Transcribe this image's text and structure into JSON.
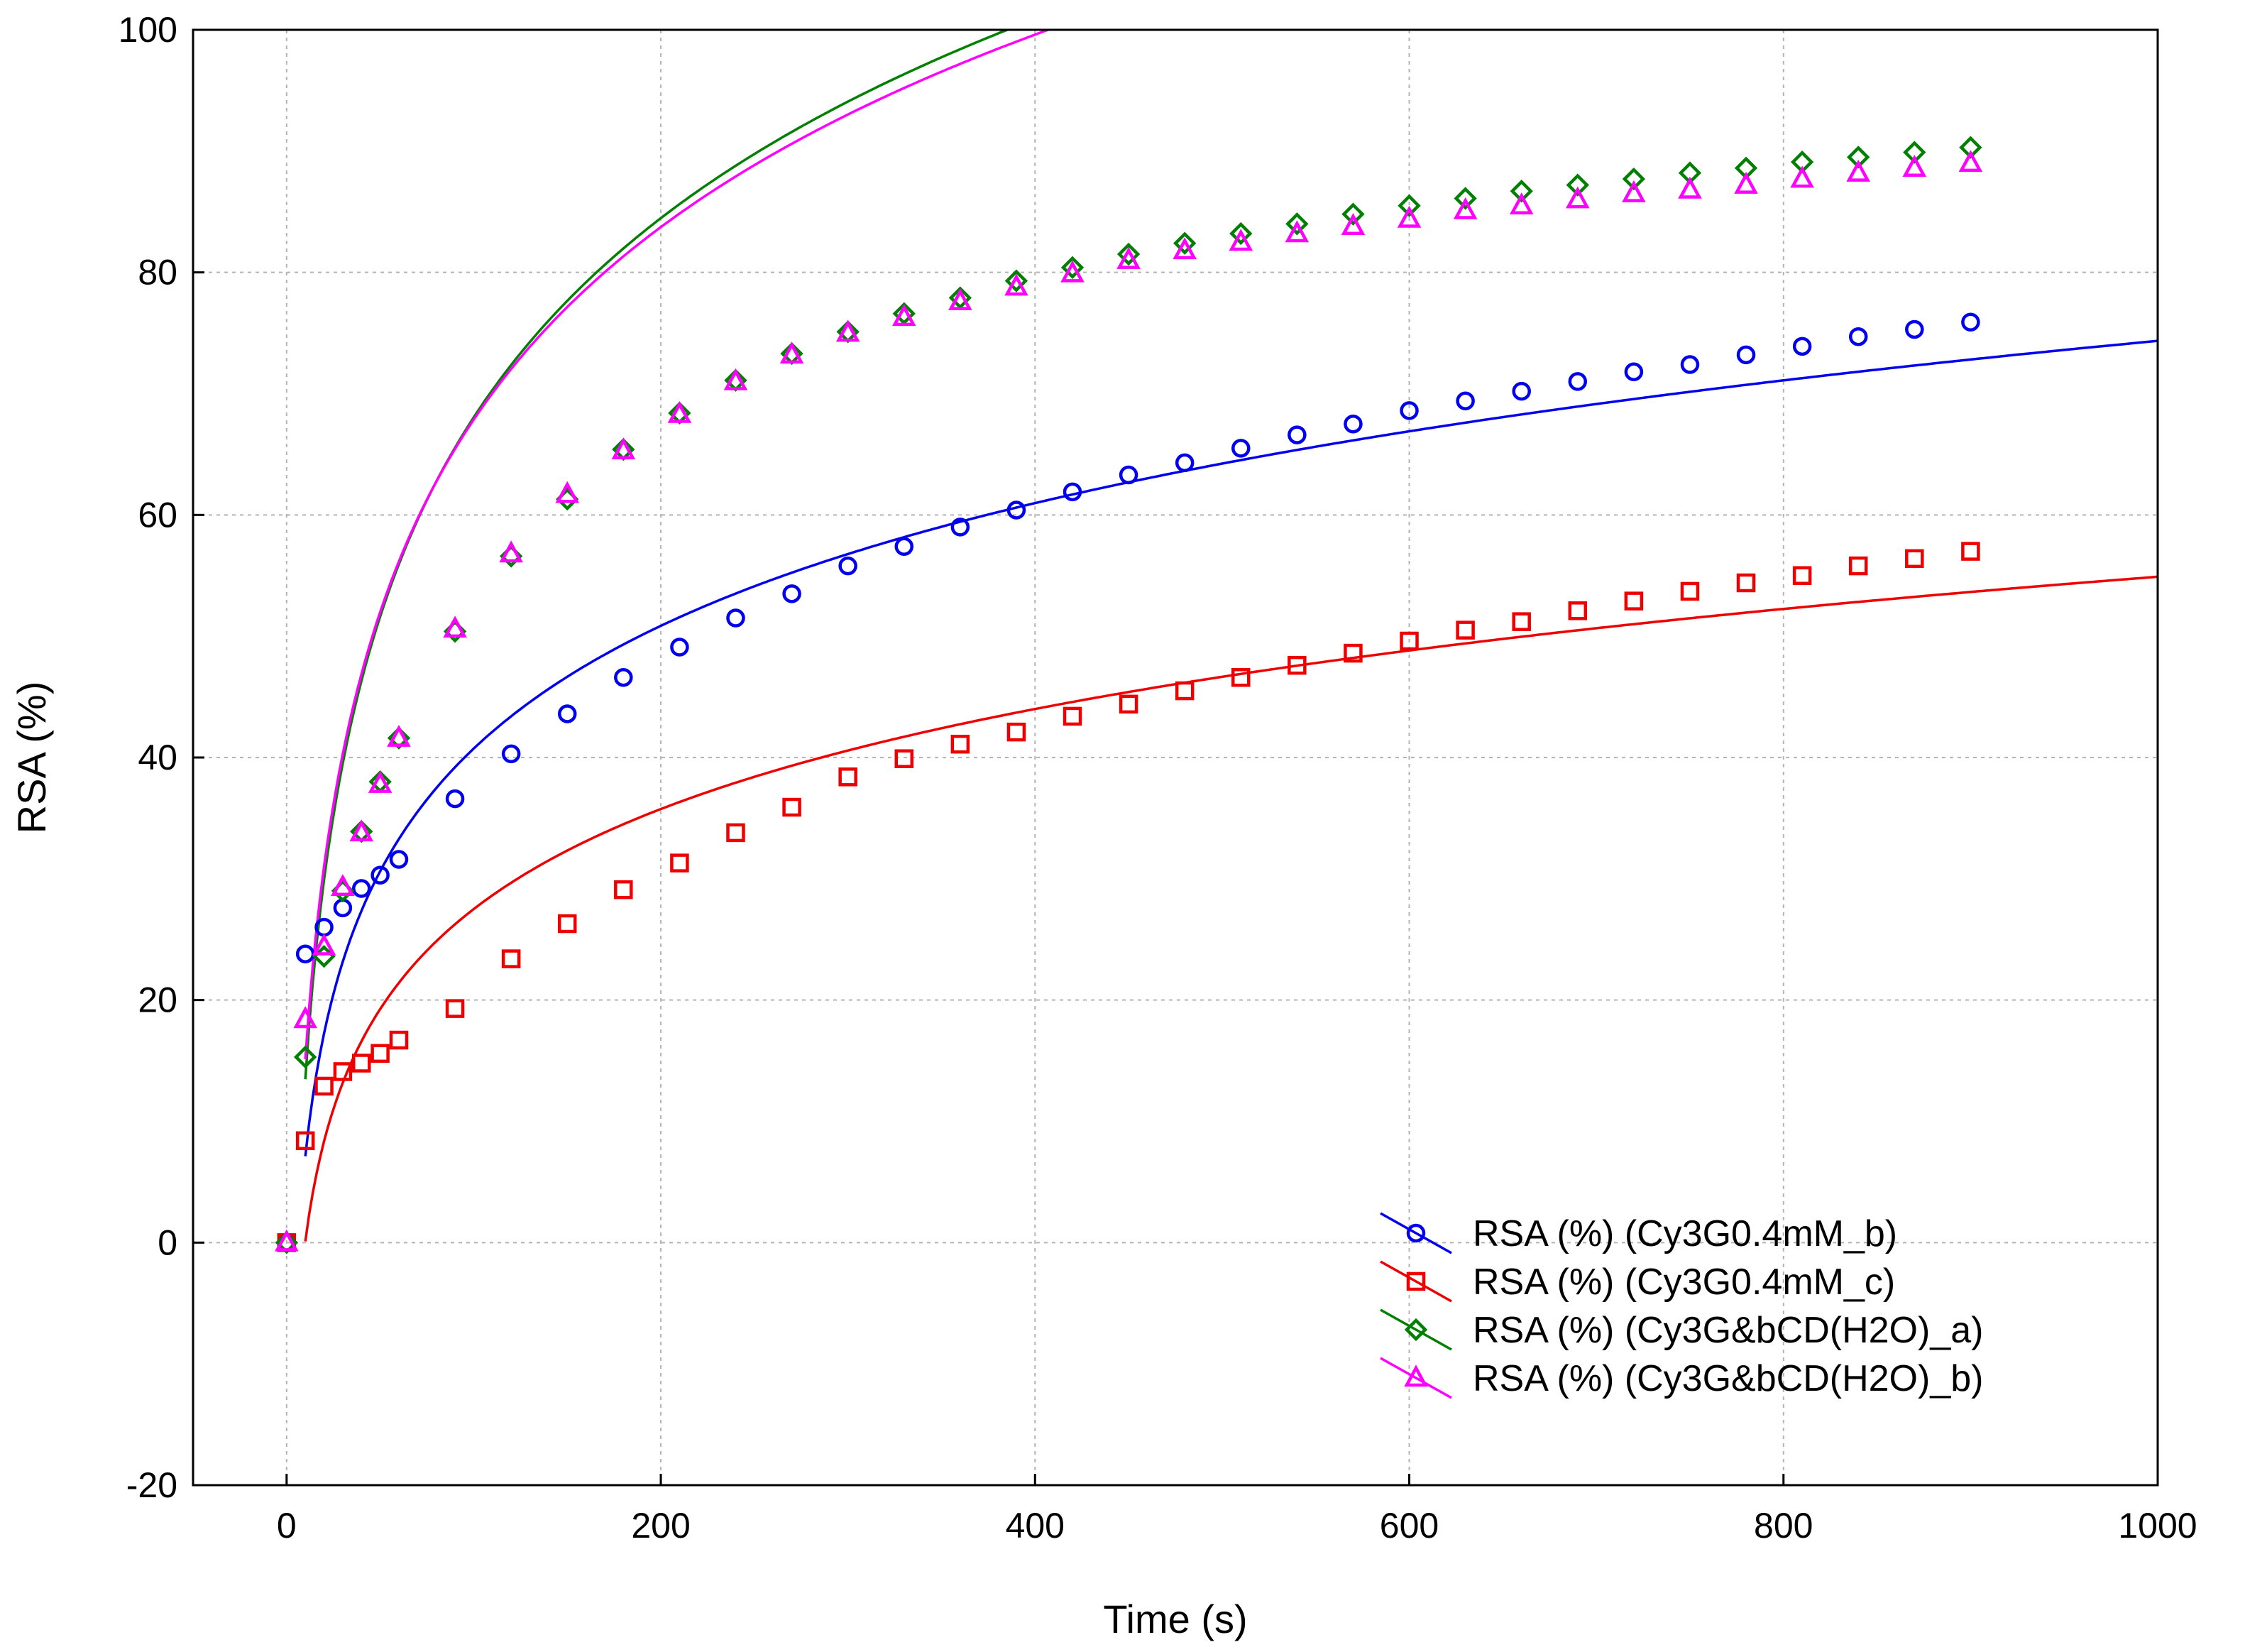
{
  "chart_data": {
    "type": "scatter",
    "xlabel": "Time (s)",
    "ylabel": "RSA (%)",
    "xlim": [
      -50,
      1000
    ],
    "ylim": [
      -20,
      100
    ],
    "xticks": [
      0,
      200,
      400,
      600,
      800,
      1000
    ],
    "yticks": [
      -20,
      0,
      20,
      40,
      60,
      80,
      100
    ],
    "xtick_labels": [
      "0",
      "200",
      "400",
      "600",
      "800",
      "1000"
    ],
    "ytick_labels": [
      "-20",
      "0",
      "20",
      "40",
      "60",
      "80",
      "100"
    ],
    "grid": true,
    "legend_position": "bottom-right",
    "series": [
      {
        "name": "RSA (%) (Cy3G0.4mM_b)",
        "color": "#0000ee",
        "marker": "circle",
        "x": [
          0,
          10,
          20,
          30,
          40,
          50,
          60,
          90,
          120,
          150,
          180,
          210,
          240,
          270,
          300,
          330,
          360,
          390,
          420,
          450,
          480,
          510,
          540,
          570,
          600,
          630,
          660,
          690,
          720,
          750,
          780,
          810,
          840,
          870,
          900
        ],
        "y": [
          0,
          23.8,
          26.0,
          27.6,
          29.2,
          30.3,
          31.6,
          36.6,
          40.3,
          43.6,
          46.6,
          49.1,
          51.5,
          53.5,
          55.8,
          57.4,
          59.0,
          60.4,
          61.9,
          63.3,
          64.3,
          65.5,
          66.6,
          67.5,
          68.6,
          69.4,
          70.2,
          71.0,
          71.8,
          72.4,
          73.2,
          73.9,
          74.7,
          75.3,
          75.9
        ],
        "fit": {
          "a": -26.5,
          "b": 14.6
        }
      },
      {
        "name": "RSA (%) (Cy3G0.4mM_c)",
        "color": "#ee0000",
        "marker": "square",
        "x": [
          0,
          10,
          20,
          30,
          40,
          50,
          60,
          90,
          120,
          150,
          180,
          210,
          240,
          270,
          300,
          330,
          360,
          390,
          420,
          450,
          480,
          510,
          540,
          570,
          600,
          630,
          660,
          690,
          720,
          750,
          780,
          810,
          840,
          870,
          900
        ],
        "y": [
          0,
          8.4,
          12.9,
          14.1,
          14.8,
          15.6,
          16.7,
          19.3,
          23.4,
          26.3,
          29.1,
          31.3,
          33.8,
          35.9,
          38.4,
          39.9,
          41.1,
          42.1,
          43.4,
          44.4,
          45.5,
          46.6,
          47.6,
          48.6,
          49.6,
          50.5,
          51.2,
          52.1,
          52.9,
          53.7,
          54.4,
          55.0,
          55.8,
          56.4,
          57.0
        ],
        "fit": {
          "a": -27.3,
          "b": 11.9
        }
      },
      {
        "name": "RSA (%) (Cy3G&bCD(H2O)_a)",
        "color": "#008000",
        "marker": "diamond",
        "x": [
          0,
          10,
          20,
          30,
          40,
          50,
          60,
          90,
          120,
          150,
          180,
          210,
          240,
          270,
          300,
          330,
          360,
          390,
          420,
          450,
          480,
          510,
          540,
          570,
          600,
          630,
          660,
          690,
          720,
          750,
          780,
          810,
          840,
          870,
          900
        ],
        "y": [
          0,
          15.3,
          23.6,
          29.0,
          33.9,
          38.0,
          41.6,
          50.4,
          56.6,
          61.3,
          65.4,
          68.4,
          71.1,
          73.3,
          75.1,
          76.6,
          77.9,
          79.3,
          80.4,
          81.5,
          82.4,
          83.2,
          84.0,
          84.8,
          85.5,
          86.1,
          86.7,
          87.2,
          87.7,
          88.2,
          88.6,
          89.1,
          89.5,
          89.9,
          90.3
        ],
        "fit": {
          "a": -41.1,
          "b": 23.7
        }
      },
      {
        "name": "RSA (%) (Cy3G&bCD(H2O)_b)",
        "color": "#ff00ff",
        "marker": "triangle",
        "x": [
          0,
          10,
          20,
          30,
          40,
          50,
          60,
          90,
          120,
          150,
          180,
          210,
          240,
          270,
          300,
          330,
          360,
          390,
          420,
          450,
          480,
          510,
          540,
          570,
          600,
          630,
          660,
          690,
          720,
          750,
          780,
          810,
          840,
          870,
          900
        ],
        "y": [
          0,
          18.4,
          24.4,
          29.3,
          33.8,
          37.8,
          41.6,
          50.6,
          56.8,
          61.7,
          65.3,
          68.3,
          71.0,
          73.2,
          75.0,
          76.3,
          77.6,
          78.8,
          79.9,
          81.0,
          81.8,
          82.5,
          83.2,
          83.8,
          84.4,
          85.1,
          85.5,
          86.0,
          86.5,
          86.8,
          87.2,
          87.7,
          88.2,
          88.6,
          89.0
        ],
        "fit": {
          "a": -37.6,
          "b": 22.9
        }
      }
    ]
  }
}
